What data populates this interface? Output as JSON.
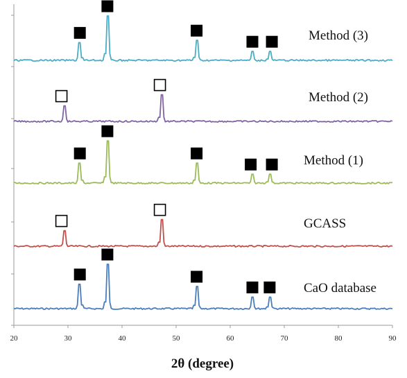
{
  "chart_data": {
    "type": "line",
    "xlabel": "2θ (degree)",
    "ylabel": "",
    "xlim": [
      20,
      90
    ],
    "xticks": [
      20,
      30,
      40,
      50,
      60,
      70,
      80,
      90
    ],
    "grid": false,
    "legend": "inline labels at right",
    "marker_legend": {
      "filled_square": "CaO reflections",
      "open_square": "GCASS reflections"
    },
    "series": [
      {
        "name": "CaO database",
        "color": "#4a7ebb",
        "peaks": [
          {
            "x": 32.2,
            "height": 0.55
          },
          {
            "x": 37.3,
            "height": 1.0
          },
          {
            "x": 53.8,
            "height": 0.5
          },
          {
            "x": 64.1,
            "height": 0.26
          },
          {
            "x": 67.3,
            "height": 0.26
          }
        ],
        "markers": [
          {
            "x": 32.2,
            "type": "filled"
          },
          {
            "x": 37.3,
            "type": "filled"
          },
          {
            "x": 53.8,
            "type": "filled"
          },
          {
            "x": 64.1,
            "type": "filled"
          },
          {
            "x": 67.3,
            "type": "filled"
          }
        ]
      },
      {
        "name": "GCASS",
        "color": "#c0504d",
        "peaks": [
          {
            "x": 29.4,
            "height": 0.35
          },
          {
            "x": 47.3,
            "height": 0.6
          }
        ],
        "markers": [
          {
            "x": 28.8,
            "type": "open"
          },
          {
            "x": 47.0,
            "type": "open"
          }
        ]
      },
      {
        "name": "Method (1)",
        "color": "#9bbb59",
        "peaks": [
          {
            "x": 32.2,
            "height": 0.45
          },
          {
            "x": 37.3,
            "height": 0.95
          },
          {
            "x": 53.8,
            "height": 0.45
          },
          {
            "x": 64.1,
            "height": 0.2
          },
          {
            "x": 67.3,
            "height": 0.2
          }
        ],
        "markers": [
          {
            "x": 32.2,
            "type": "filled"
          },
          {
            "x": 37.3,
            "type": "filled"
          },
          {
            "x": 53.8,
            "type": "filled"
          },
          {
            "x": 63.8,
            "type": "filled"
          },
          {
            "x": 67.7,
            "type": "filled"
          }
        ]
      },
      {
        "name": "Method (2)",
        "color": "#8064a2",
        "peaks": [
          {
            "x": 29.4,
            "height": 0.35
          },
          {
            "x": 47.3,
            "height": 0.6
          }
        ],
        "markers": [
          {
            "x": 28.8,
            "type": "open"
          },
          {
            "x": 47.0,
            "type": "open"
          }
        ]
      },
      {
        "name": "Method (3)",
        "color": "#4bacc6",
        "peaks": [
          {
            "x": 32.2,
            "height": 0.4
          },
          {
            "x": 37.3,
            "height": 1.0
          },
          {
            "x": 53.8,
            "height": 0.45
          },
          {
            "x": 64.1,
            "height": 0.2
          },
          {
            "x": 67.3,
            "height": 0.2
          }
        ],
        "markers": [
          {
            "x": 32.2,
            "type": "filled"
          },
          {
            "x": 37.3,
            "type": "filled"
          },
          {
            "x": 53.8,
            "type": "filled"
          },
          {
            "x": 64.1,
            "type": "filled"
          },
          {
            "x": 67.7,
            "type": "filled"
          }
        ]
      }
    ]
  }
}
